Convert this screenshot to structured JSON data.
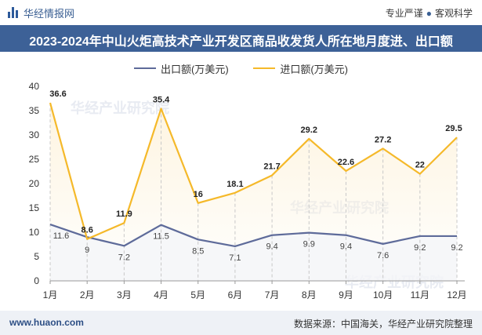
{
  "brand": {
    "name": "华经情报网"
  },
  "tagline": {
    "left": "专业严谨",
    "separator": "●",
    "right": "客观科学"
  },
  "title": "2023-2024年中山火炬高技术产业开发区商品收发货人所在地月度进、出口额",
  "footer": {
    "site": "www.huaon.com",
    "source": "数据来源：中国海关，华经产业研究院整理"
  },
  "colors": {
    "export": "#5e6b9a",
    "import": "#f5b92a",
    "title_bg": "#3d6197"
  },
  "chart_data": {
    "type": "line",
    "categories": [
      "1月",
      "2月",
      "3月",
      "4月",
      "5月",
      "6月",
      "7月",
      "8月",
      "9月",
      "10月",
      "11月",
      "12月"
    ],
    "series": [
      {
        "name": "出口额(万美元)",
        "values": [
          11.6,
          9,
          7.2,
          11.5,
          8.5,
          7.1,
          9.4,
          9.9,
          9.4,
          7.6,
          9.2,
          9.2
        ]
      },
      {
        "name": "进口额(万美元)",
        "values": [
          36.6,
          8.6,
          11.9,
          35.4,
          16,
          18.1,
          21.7,
          29.2,
          22.6,
          27.2,
          22,
          29.5
        ]
      }
    ],
    "ylim": [
      0,
      40
    ],
    "yticks": [
      0,
      5,
      10,
      15,
      20,
      25,
      30,
      35,
      40
    ],
    "grid": false,
    "legend": "top-center"
  },
  "watermarks": [
    "华经产业研究院",
    "华经产业研究院",
    "华经产业研究院"
  ]
}
